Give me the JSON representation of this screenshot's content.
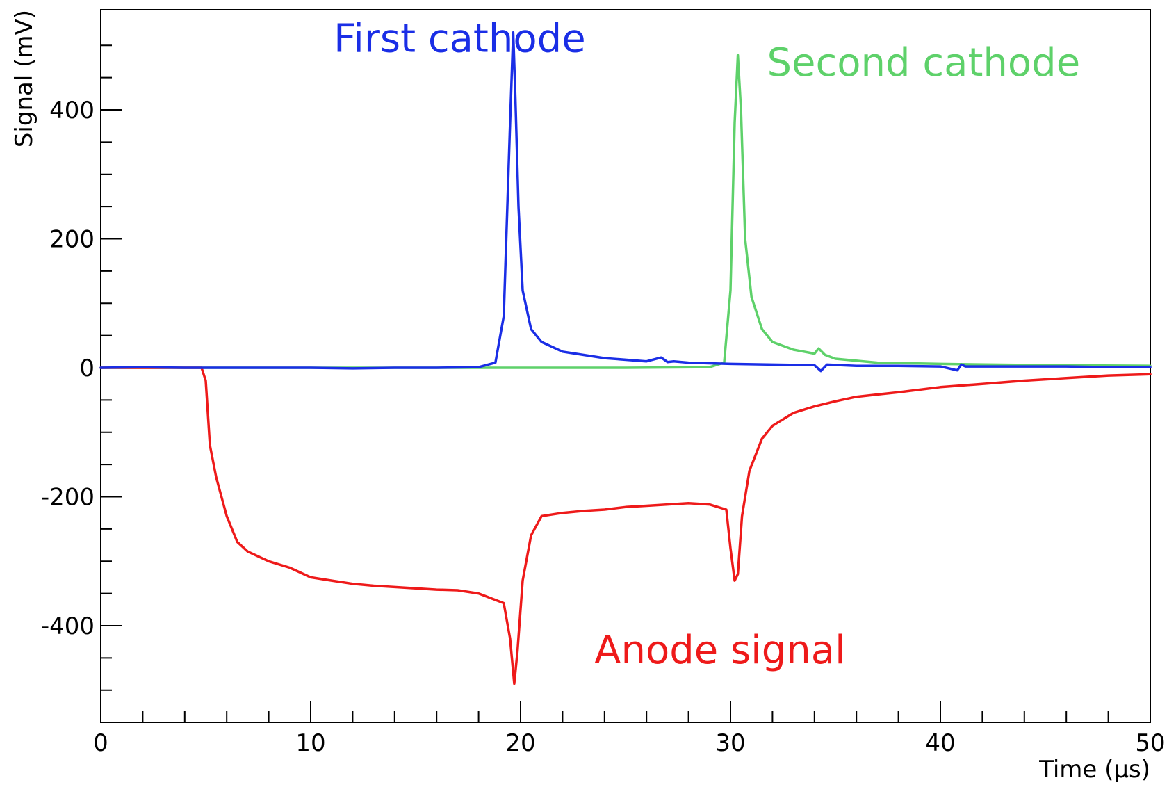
{
  "chart_data": {
    "type": "line",
    "title": "",
    "xlabel": "Time (µs)",
    "ylabel": "Signal (mV)",
    "xlim": [
      0,
      50
    ],
    "ylim": [
      -550,
      550
    ],
    "x_ticks": [
      0,
      10,
      20,
      30,
      40,
      50
    ],
    "x_tick_labels": [
      "0",
      "10",
      "20",
      "30",
      "40",
      "50"
    ],
    "y_ticks": [
      -400,
      -200,
      0,
      200,
      400
    ],
    "y_tick_labels": [
      "-400",
      "-200",
      "0",
      "200",
      "400"
    ],
    "grid": false,
    "legend": "none",
    "series": [
      {
        "name": "First cathode",
        "color": "#1a2ee6",
        "x": [
          0,
          2,
          4,
          6,
          8,
          10,
          12,
          14,
          16,
          18,
          18.8,
          19.2,
          19.5,
          19.65,
          19.75,
          19.9,
          20.1,
          20.5,
          21.0,
          22.0,
          24.0,
          26.0,
          26.7,
          27.0,
          27.3,
          28.0,
          30.0,
          32.0,
          34.0,
          34.3,
          34.6,
          36.0,
          38.0,
          40.0,
          40.8,
          41.0,
          41.2,
          42.0,
          44.0,
          46.0,
          48.0,
          50.0
        ],
        "y": [
          0,
          1,
          0,
          0,
          0,
          0,
          -1,
          0,
          0,
          1,
          8,
          80,
          380,
          520,
          420,
          250,
          120,
          60,
          40,
          25,
          15,
          10,
          16,
          9,
          10,
          8,
          6,
          5,
          4,
          -5,
          5,
          3,
          3,
          2,
          -4,
          5,
          2,
          2,
          2,
          2,
          1,
          1
        ]
      },
      {
        "name": "Second cathode",
        "color": "#5ed16a",
        "x": [
          0,
          5,
          10,
          15,
          20,
          25,
          29.0,
          29.7,
          30.0,
          30.2,
          30.35,
          30.5,
          30.7,
          31.0,
          31.5,
          32.0,
          33.0,
          34.0,
          34.2,
          34.5,
          35.0,
          37.0,
          40.0,
          45.0,
          50.0
        ],
        "y": [
          0,
          0,
          0,
          0,
          0,
          0,
          1,
          8,
          120,
          380,
          485,
          400,
          200,
          110,
          60,
          40,
          28,
          22,
          30,
          20,
          14,
          8,
          6,
          4,
          3
        ]
      },
      {
        "name": "Anode signal",
        "color": "#ee1a1a",
        "x": [
          0,
          4.8,
          5.0,
          5.2,
          5.5,
          6.0,
          6.5,
          7.0,
          8.0,
          9.0,
          10.0,
          11.0,
          12.0,
          13.0,
          14.0,
          15.0,
          16.0,
          17.0,
          18.0,
          19.2,
          19.5,
          19.7,
          19.85,
          20.1,
          20.5,
          21.0,
          22.0,
          23.0,
          24.0,
          25.0,
          26.0,
          27.0,
          28.0,
          29.0,
          29.8,
          30.0,
          30.2,
          30.35,
          30.55,
          30.9,
          31.5,
          32.0,
          33.0,
          34.0,
          35.0,
          36.0,
          38.0,
          40.0,
          42.0,
          44.0,
          46.0,
          48.0,
          50.0
        ],
        "y": [
          0,
          0,
          -20,
          -120,
          -170,
          -230,
          -270,
          -285,
          -300,
          -310,
          -325,
          -330,
          -335,
          -338,
          -340,
          -342,
          -344,
          -345,
          -350,
          -365,
          -420,
          -490,
          -440,
          -330,
          -260,
          -230,
          -225,
          -222,
          -220,
          -216,
          -214,
          -212,
          -210,
          -212,
          -220,
          -280,
          -330,
          -320,
          -230,
          -160,
          -110,
          -90,
          -70,
          -60,
          -52,
          -45,
          -38,
          -30,
          -25,
          -20,
          -16,
          -12,
          -10
        ]
      }
    ],
    "annotations": [
      {
        "text": "First cathode",
        "x": 17.1,
        "y": 490,
        "color": "#1a2ee6"
      },
      {
        "text": "Second cathode",
        "x": 39.2,
        "y": 453,
        "color": "#5ed16a"
      },
      {
        "text": "Anode signal",
        "x": 29.5,
        "y": -458,
        "color": "#ee1a1a"
      }
    ]
  }
}
